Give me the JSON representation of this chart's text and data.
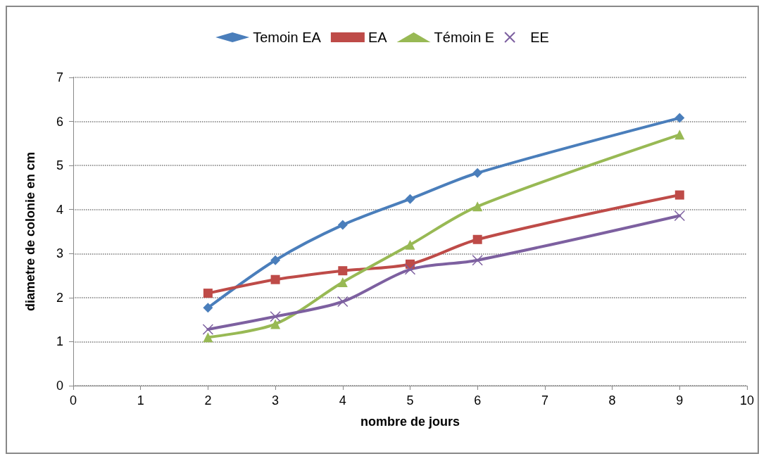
{
  "chart_data": {
    "type": "line",
    "xlabel": "nombre de jours",
    "ylabel": "diametre de colonie en cm",
    "x": [
      2,
      3,
      4,
      5,
      6,
      9
    ],
    "series": [
      {
        "name": "Temoin EA",
        "color": "#4a7ebb",
        "marker": "diamond",
        "values": [
          1.77,
          2.85,
          3.65,
          4.24,
          4.83,
          6.08
        ]
      },
      {
        "name": "EA",
        "color": "#be4b48",
        "marker": "square",
        "values": [
          2.1,
          2.41,
          2.61,
          2.76,
          3.32,
          4.33
        ]
      },
      {
        "name": "Témoin E",
        "color": "#98b954",
        "marker": "triangle",
        "values": [
          1.1,
          1.4,
          2.35,
          3.2,
          4.07,
          5.7
        ]
      },
      {
        "name": "EE",
        "color": "#7d60a0",
        "marker": "cross",
        "values": [
          1.28,
          1.57,
          1.91,
          2.64,
          2.85,
          3.86
        ]
      }
    ],
    "xlim": [
      0,
      10
    ],
    "xticks": [
      0,
      1,
      2,
      3,
      4,
      5,
      6,
      7,
      8,
      9,
      10
    ],
    "ylim": [
      0,
      7
    ],
    "yticks": [
      0,
      1,
      2,
      3,
      4,
      5,
      6,
      7
    ],
    "grid": "y",
    "legend": "top",
    "line_style": "solid"
  }
}
